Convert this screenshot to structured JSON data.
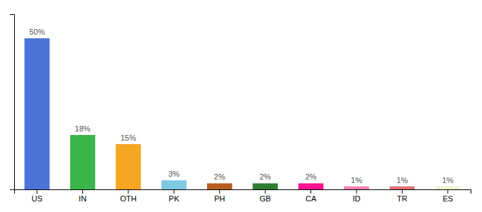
{
  "chart_data": {
    "type": "bar",
    "categories": [
      "US",
      "IN",
      "OTH",
      "PK",
      "PH",
      "GB",
      "CA",
      "ID",
      "TR",
      "ES"
    ],
    "values": [
      50,
      18,
      15,
      3,
      2,
      2,
      2,
      1,
      1,
      1
    ],
    "value_labels": [
      "50%",
      "18%",
      "15%",
      "3%",
      "2%",
      "2%",
      "2%",
      "1%",
      "1%",
      "1%"
    ],
    "colors": [
      "#4a72d9",
      "#3ab54a",
      "#f5a623",
      "#7ec8e3",
      "#b85c20",
      "#2e7d32",
      "#ff1493",
      "#ff80b0",
      "#e07070",
      "#f0f0d0"
    ],
    "ylim": [
      0,
      58
    ],
    "grid": false,
    "data_labels": true,
    "tick_labels": "x"
  }
}
